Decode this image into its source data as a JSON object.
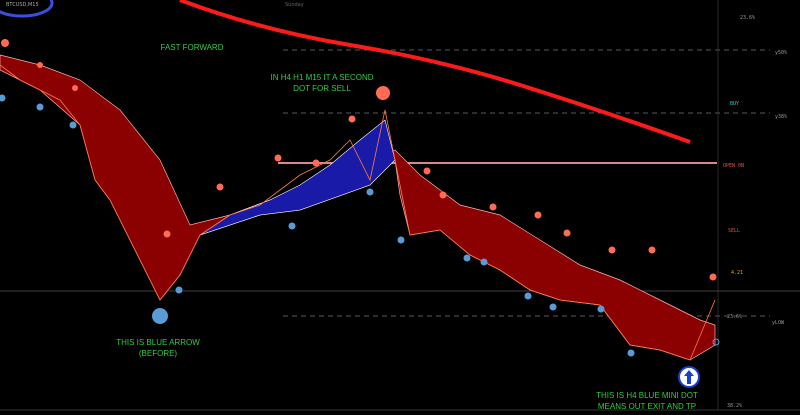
{
  "header": {
    "symbol": "BTCUSD,M15",
    "day": "Sunday"
  },
  "levels": [
    "23.6%",
    "y50%",
    "BUY",
    "y38%",
    "OPEN 0N",
    "SELL",
    "4.21",
    "23.6%",
    "yLOW",
    "38.2%"
  ],
  "annotations": [
    {
      "lines": [
        "FAST FORWARD"
      ]
    },
    {
      "lines": [
        "IN H4 H1 M15 IT A SECOND",
        "DOT FOR SELL"
      ]
    },
    {
      "lines": [
        "THIS IS BLUE ARROW",
        "(BEFORE)"
      ]
    },
    {
      "lines": [
        "THIS IS H4 BLUE MINI DOT",
        "MEANS OUT EXIT AND TP"
      ]
    }
  ]
}
